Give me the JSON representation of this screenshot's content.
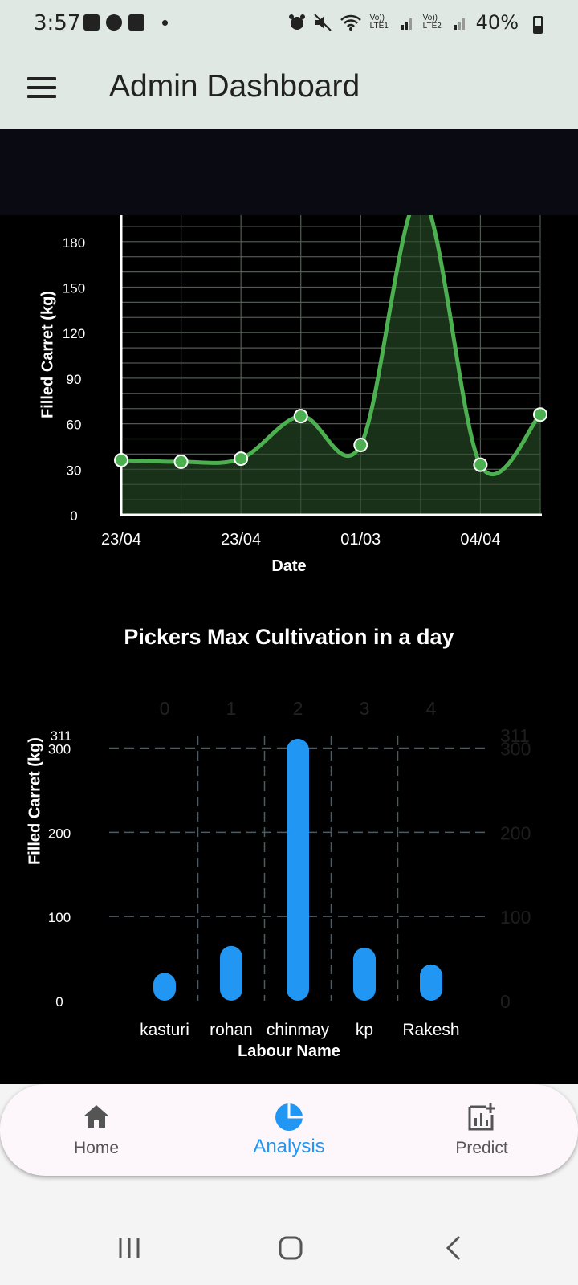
{
  "status_bar": {
    "time": "3:57",
    "battery": "40%",
    "sim1": "Vo)) LTE1",
    "sim2": "Vo)) LTE2"
  },
  "app_bar": {
    "title": "Admin Dashboard",
    "menu_icon": "menu-icon"
  },
  "line_chart": {
    "chart_data": {
      "type": "area",
      "x": [
        "23/04",
        "",
        "23/04",
        "",
        "01/03",
        "",
        "04/04",
        ""
      ],
      "xlabel": "Date",
      "ylabel": "Filled Carret (kg)",
      "y_ticks": [
        "0",
        "30",
        "60",
        "90",
        "120",
        "150",
        "180"
      ],
      "ylim": [
        0,
        200
      ],
      "points": [
        {
          "x": 0,
          "y": 36
        },
        {
          "x": 1,
          "y": 35
        },
        {
          "x": 2,
          "y": 37
        },
        {
          "x": 3,
          "y": 65
        },
        {
          "x": 4,
          "y": 46
        },
        {
          "x": 5,
          "y": 210,
          "marker": false
        },
        {
          "x": 6,
          "y": 33
        },
        {
          "x": 7,
          "y": 66
        }
      ],
      "grid": true,
      "line_color": "#4caf50",
      "fill_color": "#1c3a1c"
    }
  },
  "bar_chart": {
    "chart_data": {
      "type": "bar",
      "title": "Pickers Max Cultivation in a day",
      "categories": [
        "kasturi",
        "rohan",
        "chinmay",
        "kp",
        "Rakesh"
      ],
      "top_indices": [
        "0",
        "1",
        "2",
        "3",
        "4"
      ],
      "values": [
        33,
        65,
        311,
        63,
        43
      ],
      "xlabel": "Labour Name",
      "ylabel": "Filled Carret (kg)",
      "y_ticks": [
        "0",
        "100",
        "200",
        "300"
      ],
      "y_max_label": "311",
      "ylim": [
        0,
        311
      ],
      "grid": true,
      "bar_color": "#2196f3"
    }
  },
  "bottom_nav": {
    "items": [
      {
        "label": "Home",
        "icon": "home-icon",
        "active": false
      },
      {
        "label": "Analysis",
        "icon": "pie-chart-icon",
        "active": true
      },
      {
        "label": "Predict",
        "icon": "predict-chart-icon",
        "active": false
      }
    ]
  }
}
